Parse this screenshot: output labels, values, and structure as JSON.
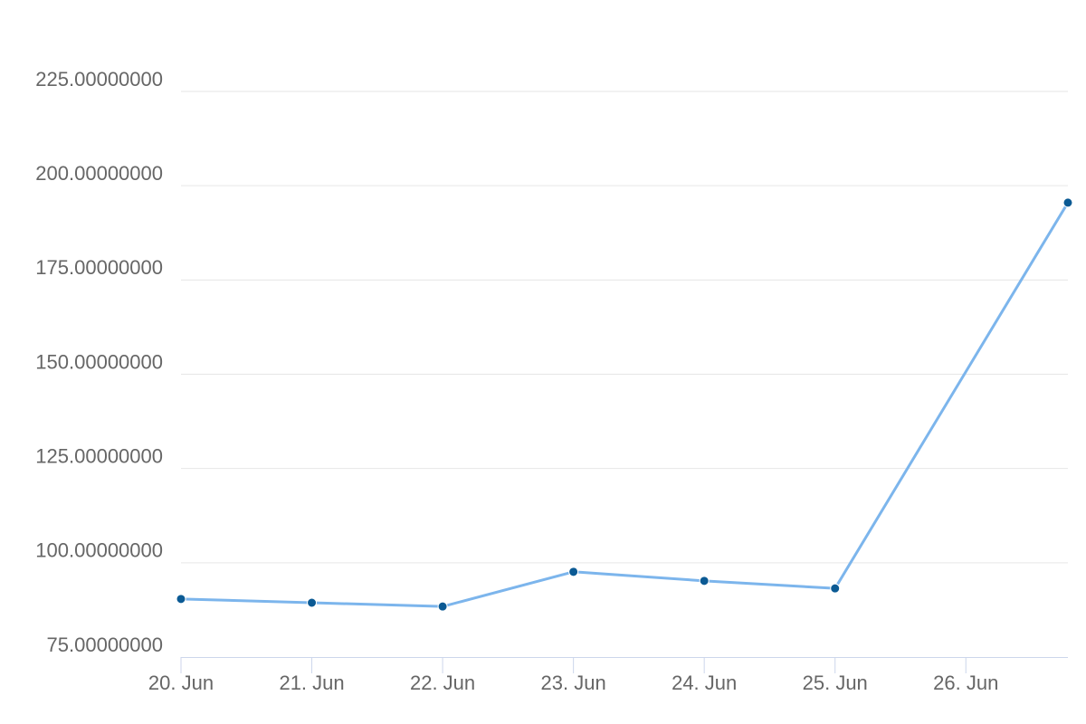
{
  "chart_data": {
    "type": "line",
    "x": [
      20,
      21,
      22,
      23,
      24,
      25,
      26.78
    ],
    "values": [
      90.4,
      89.4,
      88.4,
      97.6,
      95.2,
      93.2,
      195.5
    ],
    "color": "#7cb5ec",
    "marker_color": "#0b5a94",
    "xlim": [
      20,
      26.78
    ],
    "xticks": [
      {
        "value": 20,
        "label": "20. Jun"
      },
      {
        "value": 21,
        "label": "21. Jun"
      },
      {
        "value": 22,
        "label": "22. Jun"
      },
      {
        "value": 23,
        "label": "23. Jun"
      },
      {
        "value": 24,
        "label": "24. Jun"
      },
      {
        "value": 25,
        "label": "25. Jun"
      },
      {
        "value": 26,
        "label": "26. Jun"
      }
    ],
    "ylim": [
      75,
      225
    ],
    "yticks": [
      {
        "value": 75,
        "label": "75.00000000"
      },
      {
        "value": 100,
        "label": "100.00000000"
      },
      {
        "value": 125,
        "label": "125.00000000"
      },
      {
        "value": 150,
        "label": "150.00000000"
      },
      {
        "value": 175,
        "label": "175.00000000"
      },
      {
        "value": 200,
        "label": "200.00000000"
      },
      {
        "value": 225,
        "label": "225.00000000"
      }
    ],
    "grid": true
  }
}
